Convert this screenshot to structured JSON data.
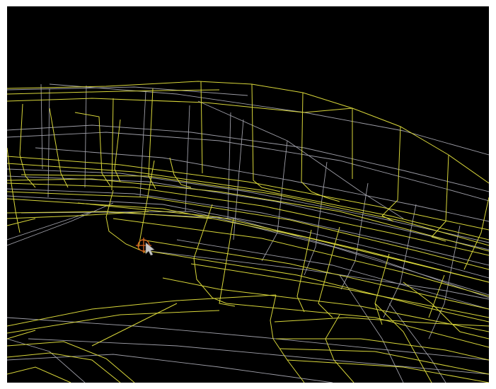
{
  "viewport": {
    "background_color": "#000000",
    "frame_color": "#ffffff",
    "wire_colors": {
      "selected": "#d8d63a",
      "unselected": "#b9b9c4"
    },
    "cursor": {
      "icon": "3d-cursor-icon",
      "color": "#d9641e"
    },
    "pointer": {
      "icon": "mouse-pointer-icon",
      "color": "#c8c8c8"
    }
  }
}
